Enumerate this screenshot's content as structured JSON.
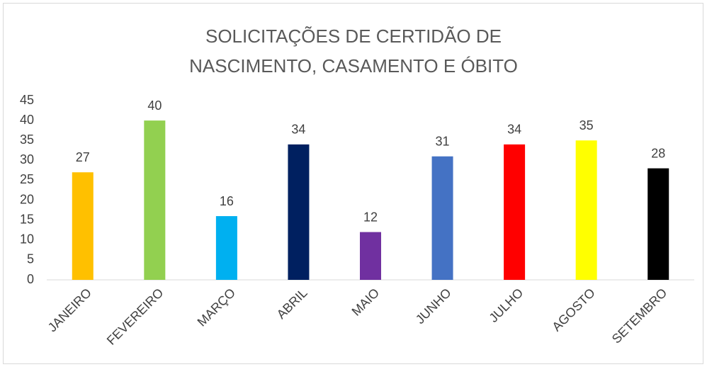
{
  "chart_data": {
    "type": "bar",
    "title": "SOLICITAÇÕES DE CERTIDÃO DE NASCIMENTO, CASAMENTO E ÓBITO",
    "categories": [
      "JANEIRO",
      "FEVEREIRO",
      "MARÇO",
      "ABRIL",
      "MAIO",
      "JUNHO",
      "JULHO",
      "AGOSTO",
      "SETEMBRO"
    ],
    "values": [
      27,
      40,
      16,
      34,
      12,
      31,
      34,
      35,
      28
    ],
    "colors": [
      "#ffc000",
      "#92d050",
      "#00b0f0",
      "#002060",
      "#7030a0",
      "#4472c4",
      "#ff0000",
      "#ffff00",
      "#000000"
    ],
    "ylim": [
      0,
      45
    ],
    "yticks": [
      0,
      5,
      10,
      15,
      20,
      25,
      30,
      35,
      40,
      45
    ],
    "grid": false
  }
}
